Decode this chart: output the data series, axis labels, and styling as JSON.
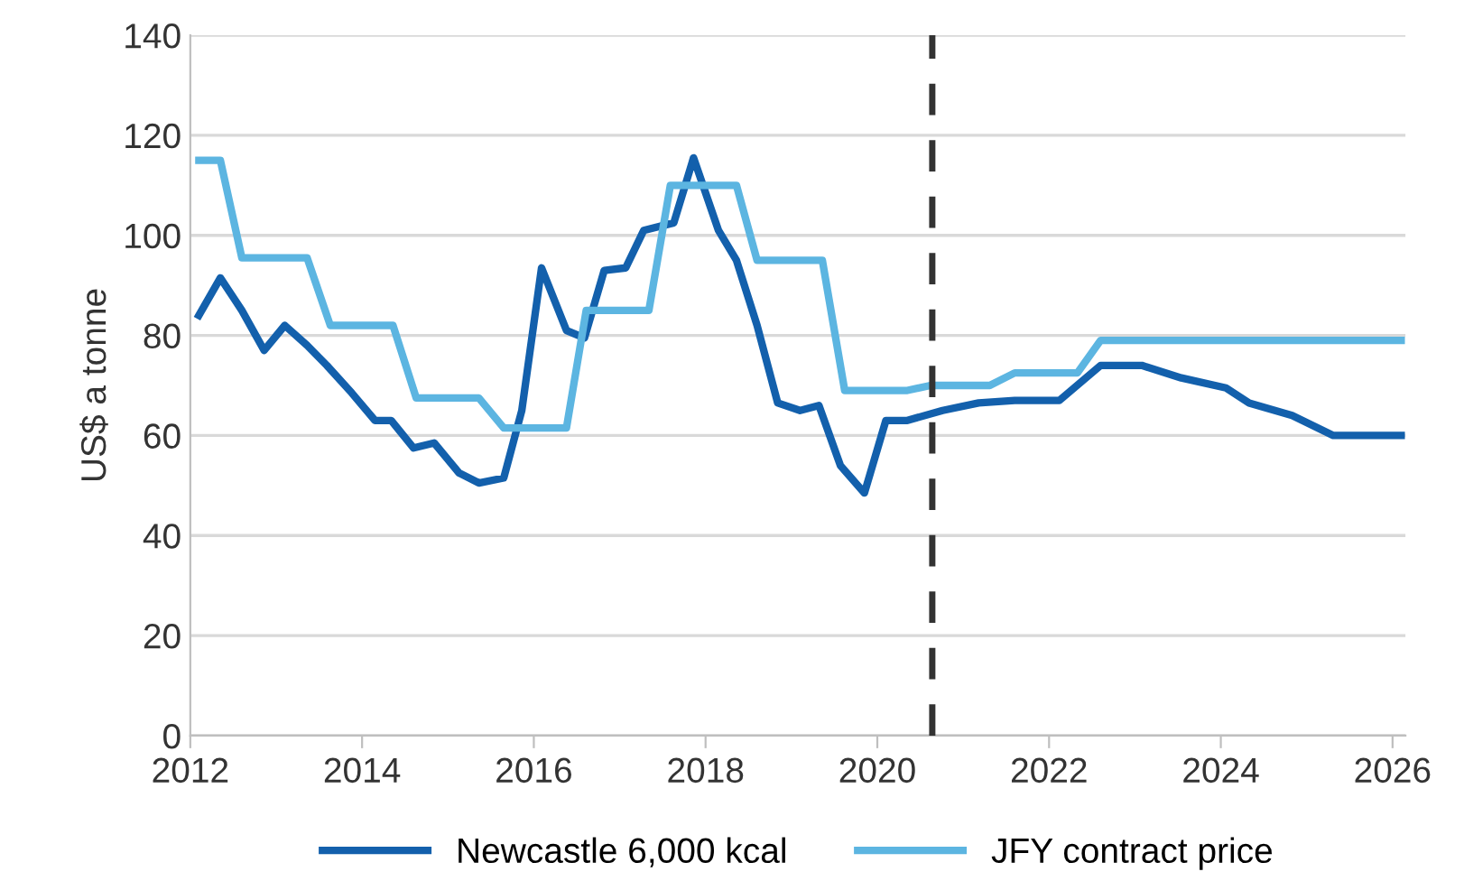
{
  "chart_data": {
    "type": "line",
    "ylabel": "US$ a tonne",
    "xlim": [
      2012,
      2026.15
    ],
    "xticks": [
      2012,
      2014,
      2016,
      2018,
      2020,
      2022,
      2024,
      2026
    ],
    "ylim": [
      0,
      140
    ],
    "yticks": [
      0,
      20,
      40,
      60,
      80,
      100,
      120,
      140
    ],
    "grid": "y",
    "legend": "bottom",
    "line_style": "solid",
    "series": [
      {
        "name": "Newcastle 6,000 kcal",
        "color": "#1360ac",
        "x": [
          2012.1,
          2012.35,
          2012.6,
          2012.86,
          2013.1,
          2013.36,
          2013.59,
          2013.88,
          2014.15,
          2014.34,
          2014.6,
          2014.84,
          2015.13,
          2015.36,
          2015.65,
          2015.86,
          2016.09,
          2016.38,
          2016.59,
          2016.82,
          2017.07,
          2017.28,
          2017.63,
          2017.86,
          2018.15,
          2018.36,
          2018.6,
          2018.84,
          2019.1,
          2019.32,
          2019.57,
          2019.85,
          2020.1,
          2020.35,
          2020.76,
          2021.18,
          2021.6,
          2022.12,
          2022.6,
          2023.08,
          2023.54,
          2024.06,
          2024.33,
          2024.83,
          2025.31,
          2026.1
        ],
        "values": [
          84,
          91.5,
          85,
          77,
          82,
          78,
          74,
          68.5,
          63,
          63,
          57.5,
          58.5,
          52.5,
          50.5,
          51.5,
          65,
          93.5,
          81,
          79.5,
          93,
          93.5,
          101,
          102.5,
          115.5,
          101,
          95,
          82,
          66.5,
          65,
          66,
          54,
          48.5,
          63,
          63,
          65,
          66.5,
          67,
          67,
          74,
          74,
          71.5,
          69.5,
          66.5,
          64,
          60,
          60
        ]
      },
      {
        "name": "JFY contract price",
        "color": "#5cb5e1",
        "x": [
          2012.1,
          2012.35,
          2012.6,
          2013.36,
          2013.63,
          2014.36,
          2014.63,
          2015.36,
          2015.65,
          2016.38,
          2016.61,
          2017.34,
          2017.59,
          2018.36,
          2018.6,
          2019.36,
          2019.62,
          2020.35,
          2020.62,
          2021.31,
          2021.6,
          2022.33,
          2022.6,
          2026.1
        ],
        "values": [
          115,
          115,
          95.5,
          95.5,
          82,
          82,
          67.5,
          67.5,
          61.5,
          61.5,
          85,
          85,
          110,
          110,
          95,
          95,
          69,
          69,
          70,
          70,
          72.5,
          72.5,
          79,
          79
        ]
      }
    ],
    "ref_lines": [
      {
        "axis": "x",
        "value": 2020.64,
        "label": null,
        "color": "#333333",
        "line_style": "dashed"
      }
    ]
  }
}
